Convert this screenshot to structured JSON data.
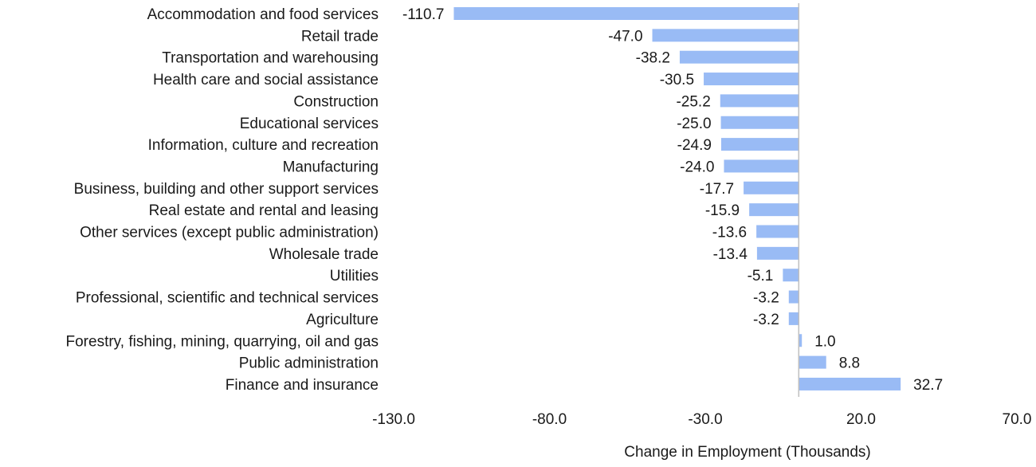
{
  "chart_data": {
    "type": "bar",
    "orientation": "horizontal",
    "title": "",
    "xlabel": "Change in Employment (Thousands)",
    "ylabel": "",
    "xlim": [
      -130,
      70
    ],
    "xticks": [
      -130,
      -80,
      -30,
      20,
      70
    ],
    "xtick_labels": [
      "-130.0",
      "-80.0",
      "-30.0",
      "20.0",
      "70.0"
    ],
    "grid": false,
    "legend": "none",
    "bar_color": "#99BBF5",
    "axis_color": "#BFBFBF",
    "categories": [
      "Accommodation and food services",
      "Retail trade",
      "Transportation and warehousing",
      "Health care and social assistance",
      "Construction",
      "Educational services",
      "Information, culture and recreation",
      "Manufacturing",
      "Business, building and other support services",
      "Real estate and rental and leasing",
      "Other services (except public administration)",
      "Wholesale trade",
      "Utilities",
      "Professional, scientific and technical services",
      "Agriculture",
      "Forestry, fishing, mining, quarrying, oil and gas",
      "Public administration",
      "Finance and insurance"
    ],
    "values": [
      -110.7,
      -47.0,
      -38.2,
      -30.5,
      -25.2,
      -25.0,
      -24.9,
      -24.0,
      -17.7,
      -15.9,
      -13.6,
      -13.4,
      -5.1,
      -3.2,
      -3.2,
      1.0,
      8.8,
      32.7
    ],
    "value_labels": [
      "-110.7",
      "-47.0",
      "-38.2",
      "-30.5",
      "-25.2",
      "-25.0",
      "-24.9",
      "-24.0",
      "-17.7",
      "-15.9",
      "-13.6",
      "-13.4",
      "-5.1",
      "-3.2",
      "-3.2",
      "1.0",
      "8.8",
      "32.7"
    ]
  }
}
